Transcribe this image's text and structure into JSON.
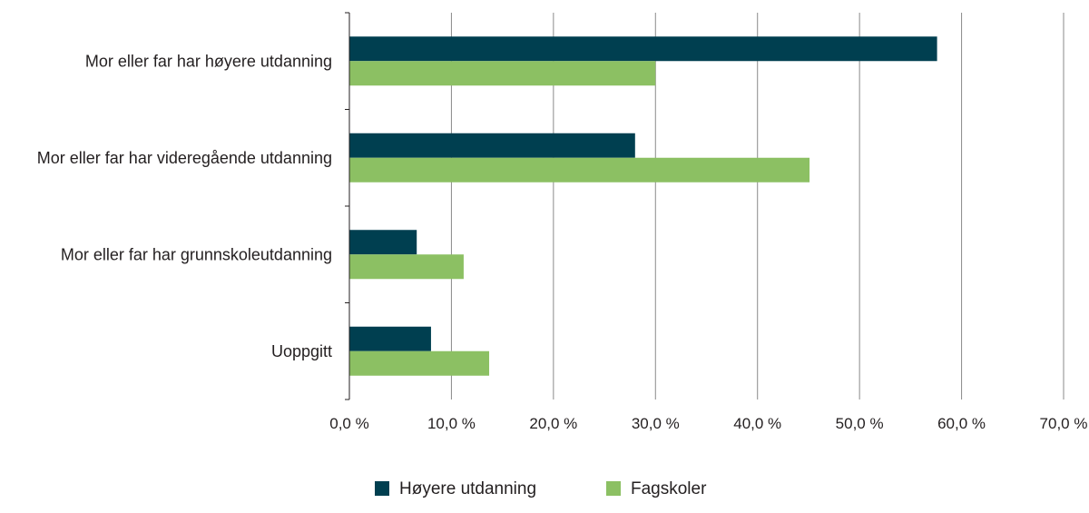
{
  "chart_data": {
    "type": "bar",
    "orientation": "horizontal",
    "categories": [
      "Mor eller far har høyere utdanning",
      "Mor eller far har videregående utdanning",
      "Mor eller far har grunnskoleutdanning",
      "Uoppgitt"
    ],
    "series": [
      {
        "name": "Høyere utdanning",
        "color": "#003f50",
        "values": [
          57.6,
          28.0,
          6.6,
          8.0
        ]
      },
      {
        "name": "Fagskoler",
        "color": "#8cc063",
        "values": [
          30.0,
          45.1,
          11.2,
          13.7
        ]
      }
    ],
    "xlim": [
      0,
      70
    ],
    "xticks": [
      0,
      10,
      20,
      30,
      40,
      50,
      60,
      70
    ],
    "xtick_labels": [
      "0,0 %",
      "10,0 %",
      "20,0 %",
      "30,0 %",
      "40,0 %",
      "50,0 %",
      "60,0 %",
      "70,0 %"
    ],
    "grid": true,
    "legend_position": "bottom",
    "title": "",
    "xlabel": "",
    "ylabel": ""
  }
}
